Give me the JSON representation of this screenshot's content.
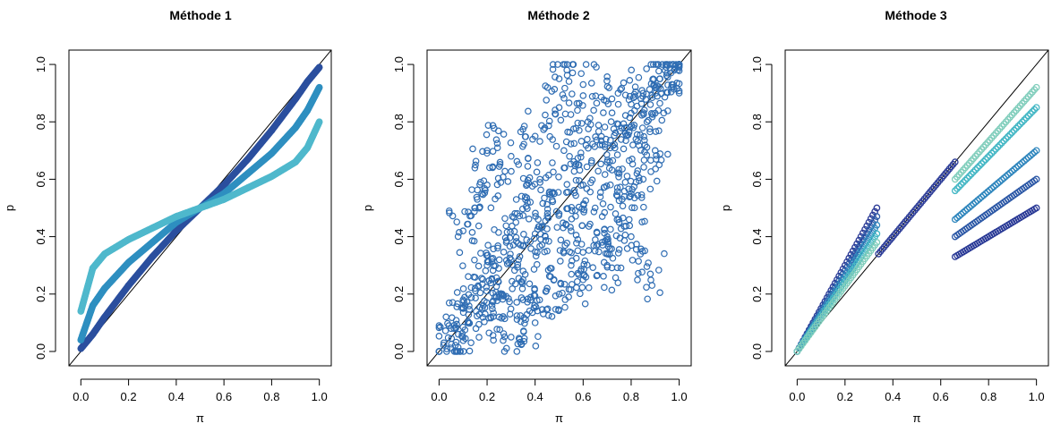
{
  "chart_data": [
    {
      "type": "scatter",
      "title": "Méthode 1",
      "xlabel": "π",
      "ylabel": "p",
      "xlim": [
        0,
        1
      ],
      "ylim": [
        0,
        1
      ],
      "xticks": [
        "0.0",
        "0.2",
        "0.4",
        "0.6",
        "0.8",
        "1.0"
      ],
      "yticks": [
        "0.0",
        "0.2",
        "0.4",
        "0.6",
        "0.8",
        "1.0"
      ],
      "reference_line": "y = x",
      "grid": false,
      "marker": "open circle",
      "series": [
        {
          "color": "#2b4f9e",
          "x": [
            0.0,
            0.05,
            0.1,
            0.2,
            0.3,
            0.4,
            0.5,
            0.6,
            0.7,
            0.8,
            0.9,
            0.95,
            1.0
          ],
          "y": [
            0.01,
            0.06,
            0.12,
            0.23,
            0.33,
            0.42,
            0.5,
            0.58,
            0.67,
            0.77,
            0.88,
            0.94,
            0.99
          ]
        },
        {
          "color": "#2e8fc0",
          "x": [
            0.0,
            0.05,
            0.1,
            0.2,
            0.3,
            0.4,
            0.5,
            0.6,
            0.7,
            0.8,
            0.9,
            0.95,
            1.0
          ],
          "y": [
            0.04,
            0.16,
            0.22,
            0.31,
            0.38,
            0.45,
            0.5,
            0.55,
            0.62,
            0.69,
            0.78,
            0.84,
            0.92
          ]
        },
        {
          "color": "#4fb8cc",
          "x": [
            0.0,
            0.05,
            0.1,
            0.2,
            0.3,
            0.4,
            0.5,
            0.6,
            0.7,
            0.8,
            0.9,
            0.95,
            1.0
          ],
          "y": [
            0.14,
            0.29,
            0.34,
            0.39,
            0.43,
            0.47,
            0.5,
            0.53,
            0.57,
            0.61,
            0.66,
            0.71,
            0.8
          ]
        }
      ]
    },
    {
      "type": "scatter",
      "title": "Méthode 2",
      "xlabel": "π",
      "ylabel": "p",
      "xlim": [
        0,
        1
      ],
      "ylim": [
        0,
        1
      ],
      "xticks": [
        "0.0",
        "0.2",
        "0.4",
        "0.6",
        "0.8",
        "1.0"
      ],
      "yticks": [
        "0.0",
        "0.2",
        "0.4",
        "0.6",
        "0.8",
        "1.0"
      ],
      "reference_line": "y = x",
      "grid": false,
      "marker": "open circle",
      "color": "#2f6db3",
      "x": [
        0.02,
        0.05,
        0.08,
        0.1,
        0.12,
        0.15,
        0.18,
        0.2,
        0.22,
        0.25,
        0.28,
        0.3,
        0.32,
        0.35,
        0.38,
        0.4,
        0.42,
        0.45,
        0.48,
        0.5,
        0.52,
        0.55,
        0.58,
        0.6,
        0.62,
        0.65,
        0.68,
        0.7,
        0.72,
        0.75,
        0.78,
        0.8,
        0.82,
        0.85,
        0.88,
        0.9,
        0.92,
        0.95,
        0.98,
        1.0,
        0.1,
        0.15,
        0.2,
        0.25,
        0.3,
        0.35,
        0.4,
        0.45,
        0.5,
        0.55,
        0.6,
        0.65,
        0.7,
        0.75,
        0.8,
        0.85,
        0.9,
        0.3,
        0.4,
        0.5,
        0.6,
        0.7,
        0.8,
        0.2,
        0.5,
        0.88
      ],
      "y": [
        0.03,
        0.08,
        0.06,
        0.18,
        0.1,
        0.22,
        0.15,
        0.3,
        0.25,
        0.2,
        0.38,
        0.32,
        0.45,
        0.28,
        0.52,
        0.41,
        0.6,
        0.35,
        0.55,
        0.48,
        0.7,
        0.42,
        0.65,
        0.58,
        0.8,
        0.5,
        0.72,
        0.66,
        0.88,
        0.62,
        0.78,
        0.83,
        0.74,
        0.9,
        0.86,
        0.92,
        0.95,
        0.97,
        0.98,
        0.99,
        0.42,
        0.5,
        0.58,
        0.12,
        0.68,
        0.18,
        0.75,
        0.22,
        0.85,
        0.3,
        0.93,
        0.35,
        0.4,
        0.45,
        0.55,
        0.6,
        0.7,
        0.05,
        0.1,
        0.2,
        0.25,
        0.3,
        0.4,
        0.7,
        0.95,
        0.27
      ]
    },
    {
      "type": "scatter",
      "title": "Méthode 3",
      "xlabel": "π",
      "ylabel": "p",
      "xlim": [
        0,
        1
      ],
      "ylim": [
        0,
        1
      ],
      "xticks": [
        "0.0",
        "0.2",
        "0.4",
        "0.6",
        "0.8",
        "1.0"
      ],
      "yticks": [
        "0.0",
        "0.2",
        "0.4",
        "0.6",
        "0.8",
        "1.0"
      ],
      "reference_line": "y = x",
      "grid": false,
      "marker": "open circle",
      "series": [
        {
          "color": "#2a3a96",
          "x": [
            0.0,
            0.333
          ],
          "y": [
            0.0,
            0.5
          ]
        },
        {
          "color": "#2c58a6",
          "x": [
            0.0,
            0.333
          ],
          "y": [
            0.0,
            0.47
          ]
        },
        {
          "color": "#2f86bd",
          "x": [
            0.0,
            0.333
          ],
          "y": [
            0.0,
            0.44
          ]
        },
        {
          "color": "#41b6c4",
          "x": [
            0.0,
            0.333
          ],
          "y": [
            0.0,
            0.41
          ]
        },
        {
          "color": "#7fcdbb",
          "x": [
            0.0,
            0.333
          ],
          "y": [
            0.0,
            0.38
          ]
        },
        {
          "color": "#2a3a96",
          "x": [
            0.34,
            0.66
          ],
          "y": [
            0.34,
            0.66
          ]
        },
        {
          "color": "#7fcdbb",
          "x": [
            0.66,
            1.0
          ],
          "y": [
            0.6,
            0.92
          ]
        },
        {
          "color": "#41b6c4",
          "x": [
            0.66,
            1.0
          ],
          "y": [
            0.56,
            0.85
          ]
        },
        {
          "color": "#2f86bd",
          "x": [
            0.66,
            1.0
          ],
          "y": [
            0.46,
            0.7
          ]
        },
        {
          "color": "#2c58a6",
          "x": [
            0.66,
            1.0
          ],
          "y": [
            0.4,
            0.6
          ]
        },
        {
          "color": "#2a3a96",
          "x": [
            0.66,
            1.0
          ],
          "y": [
            0.33,
            0.5
          ]
        }
      ]
    }
  ]
}
